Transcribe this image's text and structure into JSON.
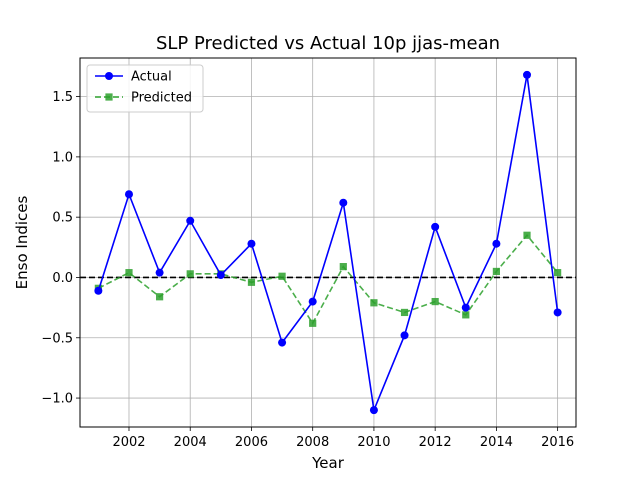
{
  "chart_data": {
    "type": "line",
    "title": "SLP Predicted vs Actual 10p jjas-mean",
    "xlabel": "Year",
    "ylabel": "Enso Indices",
    "xlim": [
      2000.4,
      2016.6
    ],
    "ylim": [
      -1.24,
      1.82
    ],
    "xticks": [
      2002,
      2004,
      2006,
      2008,
      2010,
      2012,
      2014,
      2016
    ],
    "xtick_labels": [
      "2002",
      "2004",
      "2006",
      "2008",
      "2010",
      "2012",
      "2014",
      "2016"
    ],
    "yticks": [
      -1.0,
      -0.5,
      0.0,
      0.5,
      1.0,
      1.5
    ],
    "ytick_labels": [
      "−1.0",
      "−0.5",
      "0.0",
      "0.5",
      "1.0",
      "1.5"
    ],
    "grid": true,
    "legend_position": "upper-left",
    "reference_line": {
      "y": 0.0,
      "style": "dashed",
      "color": "#000000"
    },
    "x": [
      2001,
      2002,
      2003,
      2004,
      2005,
      2006,
      2007,
      2008,
      2009,
      2010,
      2011,
      2012,
      2013,
      2014,
      2015,
      2016
    ],
    "series": [
      {
        "name": "Actual",
        "color": "#0000ff",
        "marker": "circle",
        "line_style": "solid",
        "values": [
          -0.11,
          0.69,
          0.04,
          0.47,
          0.02,
          0.28,
          -0.54,
          -0.2,
          0.62,
          -1.1,
          -0.48,
          0.42,
          -0.25,
          0.28,
          1.68,
          -0.29
        ]
      },
      {
        "name": "Predicted",
        "color": "#2ca02c",
        "marker": "square",
        "line_style": "dashed",
        "values": [
          -0.09,
          0.04,
          -0.16,
          0.03,
          0.03,
          -0.04,
          0.01,
          -0.38,
          0.09,
          -0.21,
          -0.29,
          -0.2,
          -0.31,
          0.05,
          0.35,
          0.04
        ]
      }
    ]
  }
}
